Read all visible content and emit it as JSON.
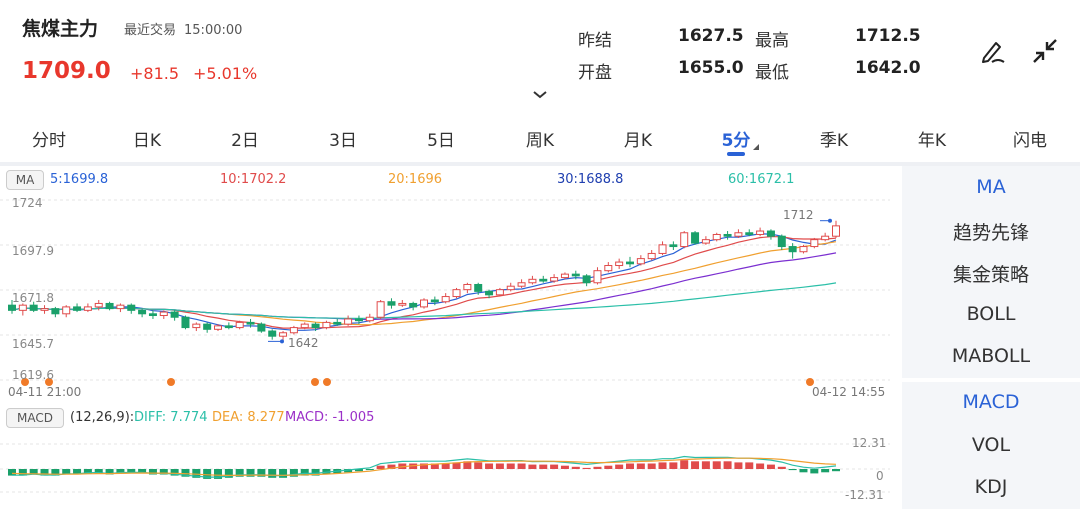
{
  "header": {
    "title": "焦煤主力",
    "trade_label": "最近交易",
    "trade_time": "15:00:00",
    "price": "1709.0",
    "change": "+81.5",
    "change_pct": "+5.01%",
    "stats": [
      {
        "label": "昨结",
        "value": "1627.5"
      },
      {
        "label": "最高",
        "value": "1712.5"
      },
      {
        "label": "开盘",
        "value": "1655.0"
      },
      {
        "label": "最低",
        "value": "1642.0"
      }
    ],
    "expand_icon": "chevron-down-icon",
    "draw_icon": "pen-draw-icon",
    "collapse_icon": "collapse-arrows-icon"
  },
  "tabs": [
    {
      "label": "分时"
    },
    {
      "label": "日K"
    },
    {
      "label": "2日"
    },
    {
      "label": "3日"
    },
    {
      "label": "5日"
    },
    {
      "label": "周K"
    },
    {
      "label": "月K"
    },
    {
      "label": "5分",
      "active": true
    },
    {
      "label": "季K"
    },
    {
      "label": "年K"
    },
    {
      "label": "闪电"
    }
  ],
  "ma_bar": {
    "tag": "MA",
    "items": [
      {
        "text": "5:1699.8",
        "color": "#2a62d6"
      },
      {
        "text": "10:1702.2",
        "color": "#e04b4b"
      },
      {
        "text": "20:1696",
        "color": "#f0a030"
      },
      {
        "text": "30:1688.8",
        "color": "#2040b0"
      },
      {
        "text": "60:1672.1",
        "color": "#2bbfa8"
      }
    ]
  },
  "macd_bar": {
    "tag": "MACD",
    "params": "(12,26,9):",
    "diff": "DIFF: 7.774",
    "dea": "DEA: 8.277",
    "macd": "MACD: -1.005",
    "diff_color": "#2bbfa8",
    "dea_color": "#f0a030",
    "macd_color": "#9b30c8"
  },
  "right_panel": {
    "main": [
      {
        "label": "MA",
        "active": true
      },
      {
        "label": "趋势先锋"
      },
      {
        "label": "集金策略"
      },
      {
        "label": "BOLL"
      },
      {
        "label": "MABOLL"
      }
    ],
    "sub": [
      {
        "label": "MACD",
        "active": true
      },
      {
        "label": "VOL"
      },
      {
        "label": "KDJ"
      }
    ]
  },
  "chart_data": {
    "type": "candlestick",
    "y_ticks": [
      "1724",
      "1697.9",
      "1671.8",
      "1645.7",
      "1619.6"
    ],
    "ylim": [
      1619.6,
      1724
    ],
    "x_start_label": "04-11 21:00",
    "x_end_label": "04-12 14:55",
    "max_marker": "1712",
    "min_marker": "1642",
    "macd_ticks": [
      "12.31",
      "0",
      "-12.31"
    ],
    "colors": {
      "up": "#e04b4b",
      "down": "#1aa06a",
      "ma5": "#2a62d6",
      "ma10": "#e04b4b",
      "ma20": "#f0a030",
      "ma30": "#7b2fd0",
      "ma60": "#2bbfa8",
      "event": "#f07a28"
    },
    "candles": [
      [
        1663,
        1660,
        1666,
        1658
      ],
      [
        1660,
        1663,
        1664,
        1657
      ],
      [
        1663,
        1660,
        1665,
        1659
      ],
      [
        1660,
        1661,
        1663,
        1658
      ],
      [
        1661,
        1658,
        1662,
        1656
      ],
      [
        1658,
        1662,
        1663,
        1656
      ],
      [
        1662,
        1660,
        1664,
        1659
      ],
      [
        1660,
        1662,
        1664,
        1659
      ],
      [
        1662,
        1664,
        1666,
        1660
      ],
      [
        1664,
        1661,
        1665,
        1660
      ],
      [
        1661,
        1663,
        1664,
        1659
      ],
      [
        1663,
        1660,
        1664,
        1658
      ],
      [
        1660,
        1658,
        1661,
        1656
      ],
      [
        1658,
        1657,
        1660,
        1655
      ],
      [
        1657,
        1659,
        1660,
        1655
      ],
      [
        1659,
        1656,
        1660,
        1654
      ],
      [
        1656,
        1650,
        1657,
        1649
      ],
      [
        1650,
        1652,
        1653,
        1648
      ],
      [
        1652,
        1649,
        1653,
        1647
      ],
      [
        1649,
        1651,
        1652,
        1648
      ],
      [
        1651,
        1650,
        1653,
        1649
      ],
      [
        1650,
        1653,
        1654,
        1649
      ],
      [
        1653,
        1652,
        1655,
        1650
      ],
      [
        1652,
        1648,
        1653,
        1647
      ],
      [
        1648,
        1645,
        1649,
        1643
      ],
      [
        1645,
        1647,
        1648,
        1642
      ],
      [
        1647,
        1650,
        1651,
        1646
      ],
      [
        1650,
        1652,
        1653,
        1649
      ],
      [
        1652,
        1650,
        1653,
        1648
      ],
      [
        1650,
        1653,
        1654,
        1649
      ],
      [
        1653,
        1652,
        1655,
        1651
      ],
      [
        1652,
        1655,
        1657,
        1651
      ],
      [
        1655,
        1654,
        1657,
        1652
      ],
      [
        1654,
        1656,
        1658,
        1653
      ],
      [
        1656,
        1665,
        1666,
        1655
      ],
      [
        1665,
        1663,
        1667,
        1661
      ],
      [
        1663,
        1664,
        1666,
        1662
      ],
      [
        1664,
        1662,
        1665,
        1660
      ],
      [
        1662,
        1666,
        1667,
        1661
      ],
      [
        1666,
        1665,
        1668,
        1663
      ],
      [
        1665,
        1668,
        1670,
        1664
      ],
      [
        1668,
        1672,
        1673,
        1667
      ],
      [
        1672,
        1675,
        1676,
        1670
      ],
      [
        1675,
        1671,
        1676,
        1669
      ],
      [
        1671,
        1669,
        1672,
        1667
      ],
      [
        1669,
        1672,
        1673,
        1668
      ],
      [
        1672,
        1674,
        1676,
        1671
      ],
      [
        1674,
        1676,
        1678,
        1673
      ],
      [
        1676,
        1678,
        1680,
        1675
      ],
      [
        1678,
        1677,
        1680,
        1676
      ],
      [
        1677,
        1679,
        1681,
        1676
      ],
      [
        1679,
        1681,
        1682,
        1678
      ],
      [
        1681,
        1680,
        1683,
        1678
      ],
      [
        1680,
        1676,
        1681,
        1674
      ],
      [
        1676,
        1683,
        1685,
        1675
      ],
      [
        1683,
        1686,
        1688,
        1682
      ],
      [
        1686,
        1688,
        1690,
        1684
      ],
      [
        1688,
        1687,
        1691,
        1685
      ],
      [
        1687,
        1690,
        1692,
        1686
      ],
      [
        1690,
        1693,
        1695,
        1689
      ],
      [
        1693,
        1698,
        1700,
        1692
      ],
      [
        1698,
        1697,
        1700,
        1695
      ],
      [
        1697,
        1705,
        1706,
        1696
      ],
      [
        1705,
        1699,
        1706,
        1698
      ],
      [
        1699,
        1701,
        1703,
        1698
      ],
      [
        1701,
        1704,
        1705,
        1700
      ],
      [
        1704,
        1703,
        1706,
        1701
      ],
      [
        1703,
        1705,
        1707,
        1702
      ],
      [
        1705,
        1704,
        1707,
        1703
      ],
      [
        1704,
        1706,
        1708,
        1703
      ],
      [
        1706,
        1703,
        1707,
        1701
      ],
      [
        1703,
        1697,
        1704,
        1695
      ],
      [
        1697,
        1694,
        1699,
        1690
      ],
      [
        1694,
        1697,
        1698,
        1693
      ],
      [
        1697,
        1701,
        1702,
        1696
      ],
      [
        1701,
        1703,
        1705,
        1700
      ],
      [
        1703,
        1709,
        1712,
        1702
      ]
    ],
    "macd_hist": [
      -3,
      -3,
      -2.5,
      -3,
      -3,
      -2.5,
      -2.5,
      -2,
      -2,
      -2.5,
      -2,
      -2,
      -2,
      -2.5,
      -2.5,
      -3,
      -3.5,
      -4,
      -4.5,
      -4.5,
      -4,
      -3.5,
      -3.5,
      -3.5,
      -4,
      -4,
      -3.5,
      -3,
      -3,
      -2.5,
      -2,
      -1.5,
      -1,
      -0.5,
      1.5,
      2,
      2.5,
      2.5,
      2.5,
      2.5,
      2.5,
      3,
      3.5,
      3,
      2.5,
      2.5,
      2.5,
      2.5,
      2,
      2,
      2,
      1.5,
      1,
      0.5,
      1,
      1.5,
      2,
      2.5,
      2.5,
      2.5,
      3,
      3,
      4,
      3.5,
      3.5,
      3.5,
      3.5,
      3,
      3,
      2.5,
      2,
      1,
      -0.5,
      -1.5,
      -2,
      -1.5,
      -1
    ]
  }
}
